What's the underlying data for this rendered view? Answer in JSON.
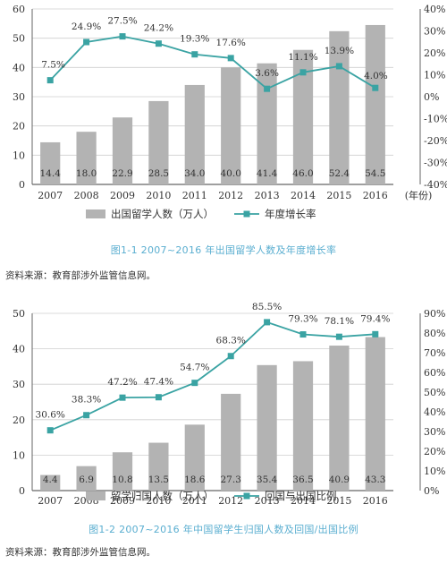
{
  "chart_data": [
    {
      "type": "bar",
      "x": [
        "2007",
        "2008",
        "2009",
        "2010",
        "2011",
        "2012",
        "2013",
        "2014",
        "2015",
        "2016"
      ],
      "x_unit_label": "(年份)",
      "series": [
        {
          "name": "出国留学人数（万人）",
          "type": "bar",
          "axis": "left",
          "values": [
            14.4,
            18.0,
            22.9,
            28.5,
            34.0,
            40.0,
            41.4,
            46.0,
            52.4,
            54.5
          ]
        },
        {
          "name": "年度增长率",
          "type": "line",
          "axis": "right",
          "values": [
            7.5,
            24.9,
            27.5,
            24.2,
            19.3,
            17.6,
            3.6,
            11.1,
            13.9,
            4.0
          ]
        }
      ],
      "bar_labels": [
        "14.4",
        "18.0",
        "22.9",
        "28.5",
        "34.0",
        "40.0",
        "41.4",
        "46.0",
        "52.4",
        "54.5"
      ],
      "line_labels": [
        "7.5%",
        "24.9%",
        "27.5%",
        "24.2%",
        "19.3%",
        "17.6%",
        "3.6%",
        "11.1%",
        "13.9%",
        "4.0%"
      ],
      "ylim_left": [
        0,
        60
      ],
      "yticks_left": [
        "0",
        "10",
        "20",
        "30",
        "40",
        "50",
        "60"
      ],
      "ylim_right": [
        -40,
        40
      ],
      "yticks_right": [
        "-40%",
        "-30%",
        "-20%",
        "-10%",
        "0%",
        "10%",
        "20%",
        "30%",
        "40%"
      ],
      "legend_position": "bottom",
      "caption": "图1-1   2007~2016 年出国留学人数及年度增长率",
      "source": "资料来源：教育部涉外监管信息网。",
      "colors": {
        "bar": "#b3b3b3",
        "line": "#3aa3a3",
        "caption": "#5aaed0"
      }
    },
    {
      "type": "bar",
      "x": [
        "2007",
        "2008",
        "2009",
        "2010",
        "2011",
        "2012",
        "2013",
        "2014",
        "2015",
        "2016"
      ],
      "series": [
        {
          "name": "留学归国人数（万人）",
          "type": "bar",
          "axis": "left",
          "values": [
            4.4,
            6.9,
            10.8,
            13.5,
            18.6,
            27.3,
            35.4,
            36.5,
            40.9,
            43.3
          ]
        },
        {
          "name": "回国与出国比例",
          "type": "line",
          "axis": "right",
          "values": [
            30.6,
            38.3,
            47.2,
            47.4,
            54.7,
            68.3,
            85.5,
            79.3,
            78.1,
            79.4
          ]
        }
      ],
      "bar_labels": [
        "4.4",
        "6.9",
        "10.8",
        "13.5",
        "18.6",
        "27.3",
        "35.4",
        "36.5",
        "40.9",
        "43.3"
      ],
      "line_labels": [
        "30.6%",
        "38.3%",
        "47.2%",
        "47.4%",
        "54.7%",
        "68.3%",
        "85.5%",
        "79.3%",
        "78.1%",
        "79.4%"
      ],
      "ylim_left": [
        0,
        50
      ],
      "yticks_left": [
        "0",
        "10",
        "20",
        "30",
        "40",
        "50"
      ],
      "ylim_right": [
        0,
        90
      ],
      "yticks_right": [
        "0%",
        "10%",
        "20%",
        "30%",
        "40%",
        "50%",
        "60%",
        "70%",
        "80%",
        "90%"
      ],
      "legend_position": "bottom",
      "caption": "图1-2   2007~2016 年中国留学生归国人数及回国/出国比例",
      "source": "资料来源：教育部涉外监管信息网。",
      "colors": {
        "bar": "#b3b3b3",
        "line": "#3aa3a3",
        "caption": "#5aaed0"
      }
    }
  ]
}
